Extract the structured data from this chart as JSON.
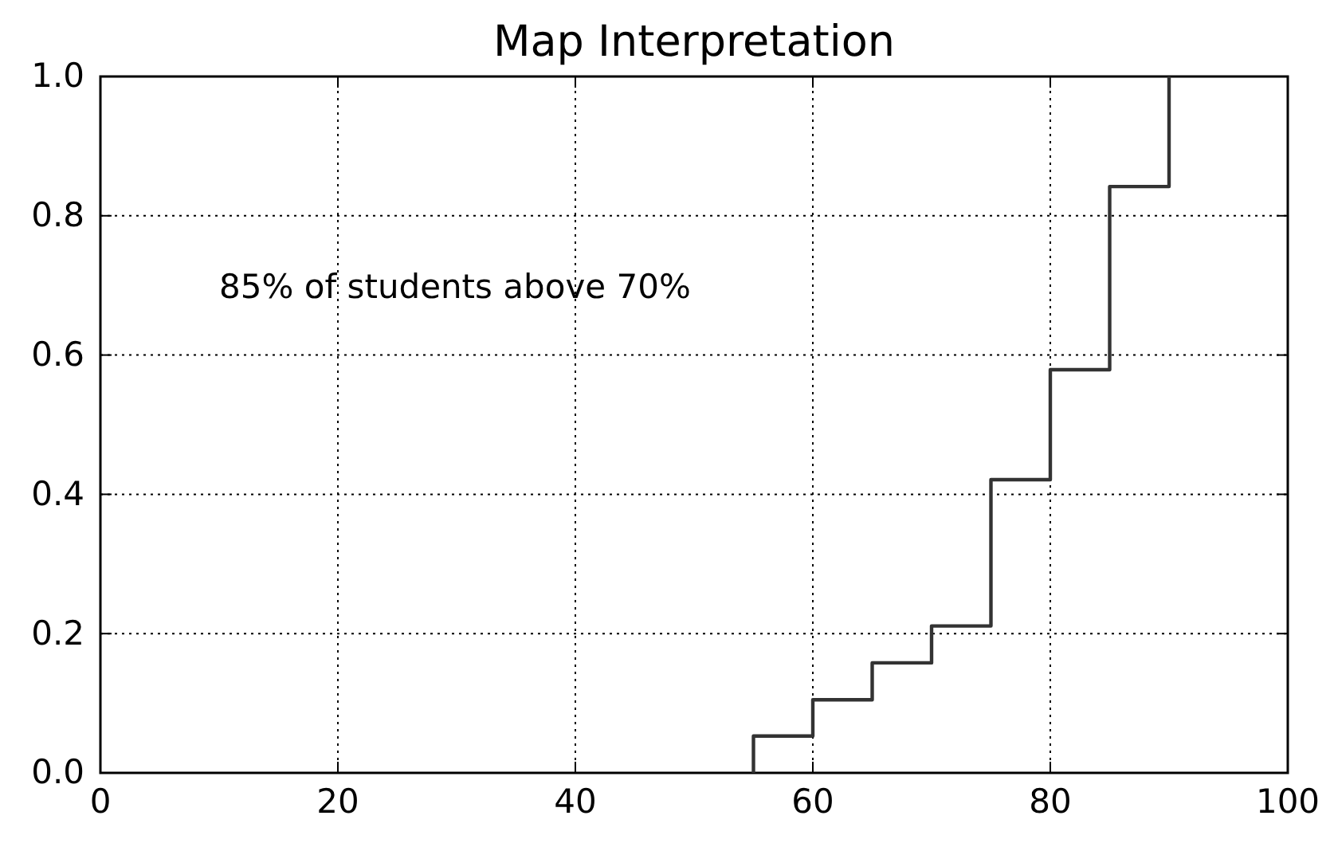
{
  "chart_data": {
    "type": "step",
    "title": "Map Interpretation",
    "x": [
      55,
      55,
      60,
      65,
      70,
      75,
      80,
      85,
      90
    ],
    "series": [
      {
        "color": "#333333",
        "values": [
          0,
          0.053,
          0.105,
          0.158,
          0.211,
          0.421,
          0.579,
          0.842,
          1.0
        ]
      }
    ],
    "xlim": [
      0,
      100
    ],
    "xticks": [
      0,
      20,
      40,
      60,
      80,
      100
    ],
    "ylim": [
      0,
      1
    ],
    "yticks": [
      {
        "value": 0,
        "label": "0.0"
      },
      {
        "value": 0.2,
        "label": "0.2"
      },
      {
        "value": 0.4,
        "label": "0.4"
      },
      {
        "value": 0.6,
        "label": "0.6"
      },
      {
        "value": 0.8,
        "label": "0.8"
      },
      {
        "value": 1,
        "label": "1.0"
      }
    ],
    "grid": true,
    "line_style": "solid",
    "marker": "none",
    "annotations": [
      "85% of students above 70%"
    ]
  }
}
